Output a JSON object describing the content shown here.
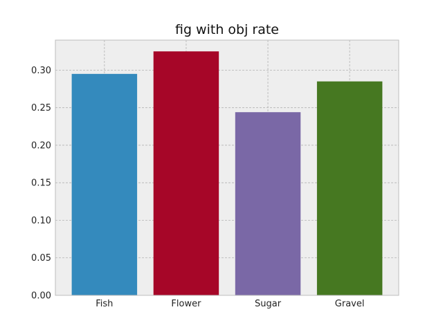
{
  "chart_data": {
    "type": "bar",
    "title": "fig with obj rate",
    "xlabel": "",
    "ylabel": "",
    "categories": [
      "Fish",
      "Flower",
      "Sugar",
      "Gravel"
    ],
    "values": [
      0.295,
      0.325,
      0.244,
      0.285
    ],
    "colors": [
      "#348ABD",
      "#A60628",
      "#7A68A6",
      "#467821"
    ],
    "ylim": [
      0,
      0.34
    ],
    "yticks": [
      0.0,
      0.05,
      0.1,
      0.15,
      0.2,
      0.25,
      0.3
    ],
    "ytick_labels": [
      "0.00",
      "0.05",
      "0.10",
      "0.15",
      "0.20",
      "0.25",
      "0.30"
    ],
    "grid": true,
    "background": "#EEEEEE",
    "grid_color": "#B2B2B2",
    "frame_color": "#BCBCBC"
  }
}
